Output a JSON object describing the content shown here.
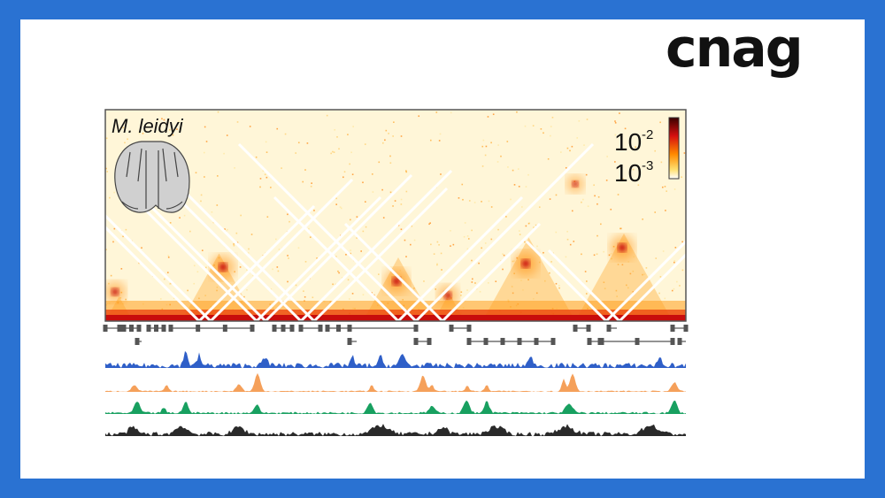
{
  "brand": {
    "logo_text": "cnag"
  },
  "figure": {
    "species_label": "M. leidyi",
    "colorbar": {
      "top_base": "10",
      "top_exp": "-2",
      "bottom_base": "10",
      "bottom_exp": "-3",
      "colors": [
        "#3a0000",
        "#d61010",
        "#ff8a00",
        "#ffe070",
        "#ffffff"
      ]
    },
    "track_colors": [
      "#2f5fc8",
      "#f5a05a",
      "#18a060",
      "#2a2a2a"
    ]
  }
}
